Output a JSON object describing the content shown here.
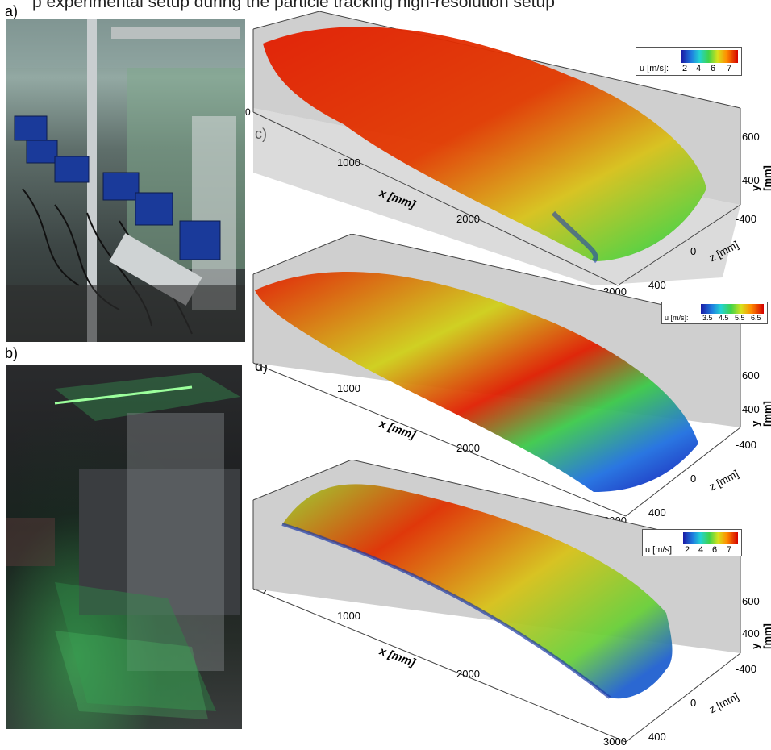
{
  "caption_fragment": "p experimental setup during the particle tracking high-resolution setup",
  "panels": {
    "a": {
      "letter": "a)"
    },
    "b": {
      "letter": "b)"
    },
    "c": {
      "letter": "c)",
      "colorbar": {
        "label": "u [m/s]:",
        "ticks": [
          "2",
          "4",
          "6",
          "7"
        ]
      }
    },
    "d": {
      "letter": "d)",
      "colorbar": {
        "label": "u [m/s]:",
        "ticks": [
          "3.5",
          "4.5",
          "5.5",
          "6.5"
        ]
      }
    },
    "e": {
      "letter": "e)",
      "colorbar": {
        "label": "u [m/s]:",
        "ticks": [
          "2",
          "4",
          "6",
          "7"
        ]
      }
    }
  },
  "axes": {
    "x_label": "x [mm]",
    "y_label": "y [mm]",
    "z_label": "z [mm]",
    "x_ticks": [
      "0",
      "1000",
      "2000",
      "3000"
    ],
    "y_ticks": [
      "400",
      "600"
    ],
    "z_ticks": [
      "-400",
      "0",
      "400"
    ]
  },
  "colors": {
    "low": "#1a1aa6",
    "mid": "#3fd34a",
    "high": "#d40000",
    "floor": "#c8c8c8"
  }
}
